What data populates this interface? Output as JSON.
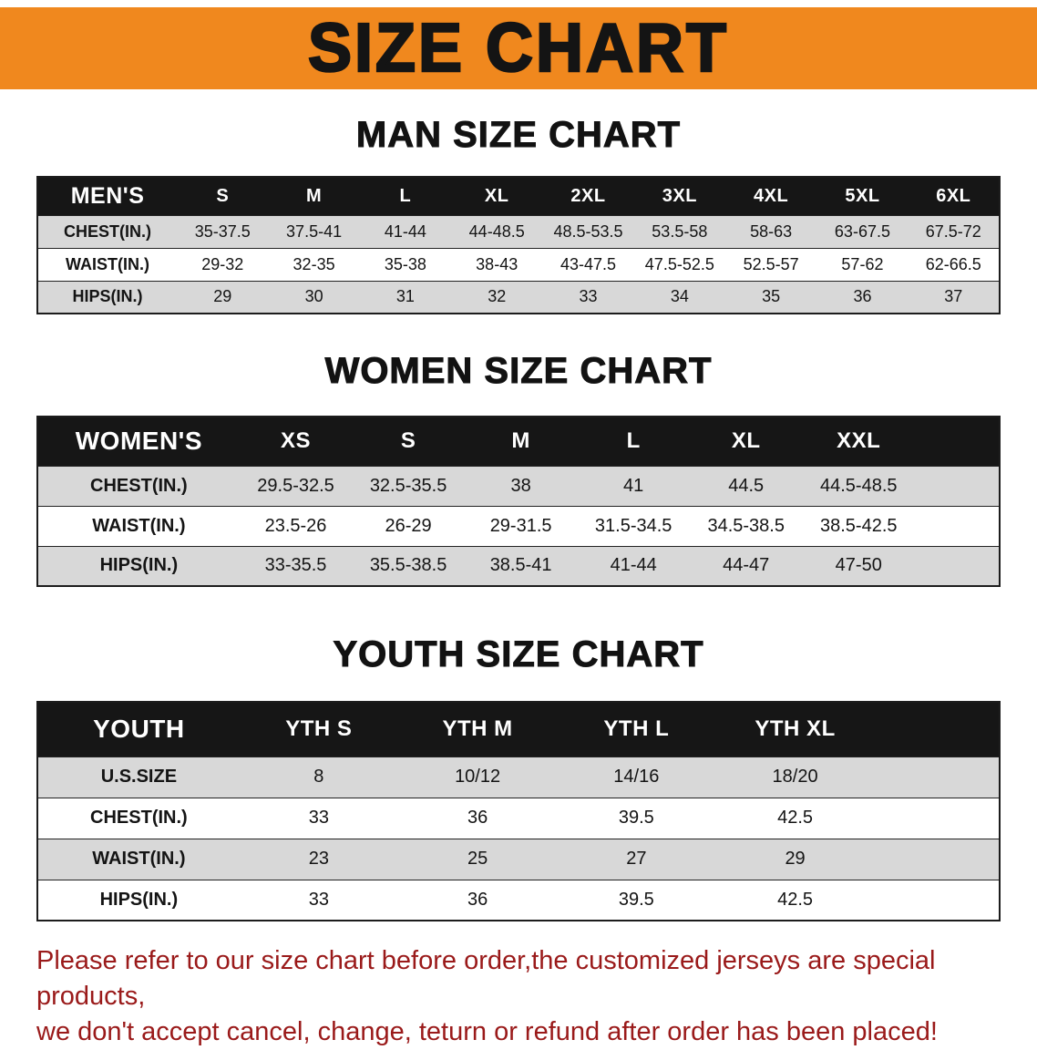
{
  "banner": {
    "title": "SIZE CHART"
  },
  "sections": [
    {
      "id": "man",
      "title": "MAN SIZE CHART",
      "group_label": "MEN'S",
      "columns": [
        "S",
        "M",
        "L",
        "XL",
        "2XL",
        "3XL",
        "4XL",
        "5XL",
        "6XL"
      ],
      "rows": [
        {
          "label": "CHEST(IN.)",
          "values": [
            "35-37.5",
            "37.5-41",
            "41-44",
            "44-48.5",
            "48.5-53.5",
            "53.5-58",
            "58-63",
            "63-67.5",
            "67.5-72"
          ]
        },
        {
          "label": "WAIST(IN.)",
          "values": [
            "29-32",
            "32-35",
            "35-38",
            "38-43",
            "43-47.5",
            "47.5-52.5",
            "52.5-57",
            "57-62",
            "62-66.5"
          ]
        },
        {
          "label": "HIPS(IN.)",
          "values": [
            "29",
            "30",
            "31",
            "32",
            "33",
            "34",
            "35",
            "36",
            "37"
          ]
        }
      ]
    },
    {
      "id": "women",
      "title": "WOMEN SIZE CHART",
      "group_label": "WOMEN'S",
      "columns": [
        "XS",
        "S",
        "M",
        "L",
        "XL",
        "XXL"
      ],
      "rows": [
        {
          "label": "CHEST(IN.)",
          "values": [
            "29.5-32.5",
            "32.5-35.5",
            "38",
            "41",
            "44.5",
            "44.5-48.5"
          ]
        },
        {
          "label": "WAIST(IN.)",
          "values": [
            "23.5-26",
            "26-29",
            "29-31.5",
            "31.5-34.5",
            "34.5-38.5",
            "38.5-42.5"
          ]
        },
        {
          "label": "HIPS(IN.)",
          "values": [
            "33-35.5",
            "35.5-38.5",
            "38.5-41",
            "41-44",
            "44-47",
            "47-50"
          ]
        }
      ]
    },
    {
      "id": "youth",
      "title": "YOUTH SIZE CHART",
      "group_label": "YOUTH",
      "columns": [
        "YTH S",
        "YTH M",
        "YTH L",
        "YTH XL"
      ],
      "rows": [
        {
          "label": "U.S.SIZE",
          "values": [
            "8",
            "10/12",
            "14/16",
            "18/20"
          ]
        },
        {
          "label": "CHEST(IN.)",
          "values": [
            "33",
            "36",
            "39.5",
            "42.5"
          ]
        },
        {
          "label": "WAIST(IN.)",
          "values": [
            "23",
            "25",
            "27",
            "29"
          ]
        },
        {
          "label": "HIPS(IN.)",
          "values": [
            "33",
            "36",
            "39.5",
            "42.5"
          ]
        }
      ]
    }
  ],
  "footer": {
    "lines": [
      "Please refer to our size chart before order,the customized jerseys are special products,",
      "we don't accept cancel, change, teturn or refund after order has been placed!"
    ]
  },
  "colors": {
    "banner_bg": "#f0881e",
    "header_bg": "#161616",
    "stripe_bg": "#d8d8d8",
    "footer_text": "#9a1a1a"
  }
}
